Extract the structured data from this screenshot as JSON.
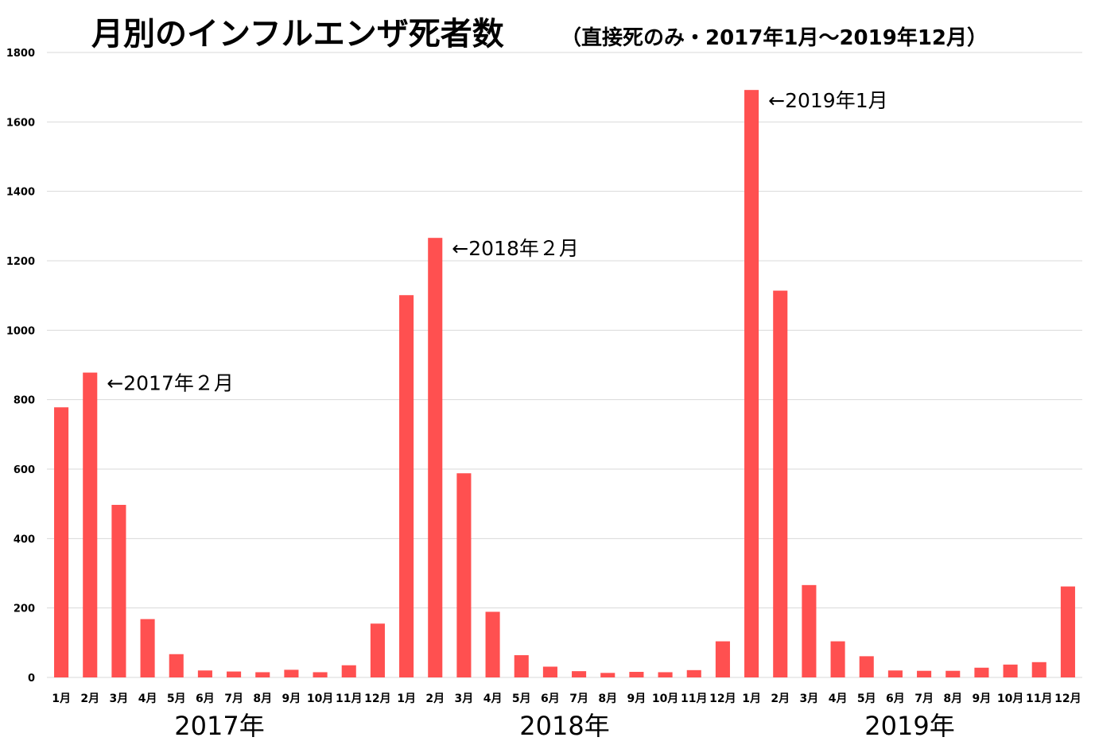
{
  "chart_data": {
    "type": "bar",
    "title": "月別のインフルエンザ死者数",
    "subtitle": "（直接死のみ・2017年1月～2019年12月）",
    "xlabel": "",
    "ylabel": "",
    "ylim": [
      0,
      1800
    ],
    "yticks": [
      "0",
      "200",
      "400",
      "600",
      "800",
      "1000",
      "1200",
      "1400",
      "1600",
      "1800"
    ],
    "grid": true,
    "colors": {
      "bar": "#ff5050",
      "grid": "#d9d9d9"
    },
    "categories": [
      "1月",
      "2月",
      "3月",
      "4月",
      "5月",
      "6月",
      "7月",
      "8月",
      "9月",
      "10月",
      "11月",
      "12月",
      "1月",
      "2月",
      "3月",
      "4月",
      "5月",
      "6月",
      "7月",
      "8月",
      "9月",
      "10月",
      "11月",
      "12月",
      "1月",
      "2月",
      "3月",
      "4月",
      "5月",
      "6月",
      "7月",
      "8月",
      "9月",
      "10月",
      "11月",
      "12月"
    ],
    "groups": [
      {
        "label": "2017年",
        "start": 0,
        "end": 11
      },
      {
        "label": "2018年",
        "start": 12,
        "end": 23
      },
      {
        "label": "2019年",
        "start": 24,
        "end": 35
      }
    ],
    "values": [
      778,
      878,
      497,
      168,
      67,
      20,
      17,
      15,
      22,
      15,
      35,
      155,
      1101,
      1266,
      588,
      189,
      64,
      31,
      18,
      13,
      16,
      15,
      21,
      104,
      1692,
      1114,
      266,
      104,
      61,
      20,
      19,
      19,
      28,
      37,
      44,
      262
    ],
    "annotations": [
      {
        "text": "←2017年２月",
        "index": 1
      },
      {
        "text": "←2018年２月",
        "index": 13
      },
      {
        "text": "←2019年1月",
        "index": 24
      }
    ]
  }
}
